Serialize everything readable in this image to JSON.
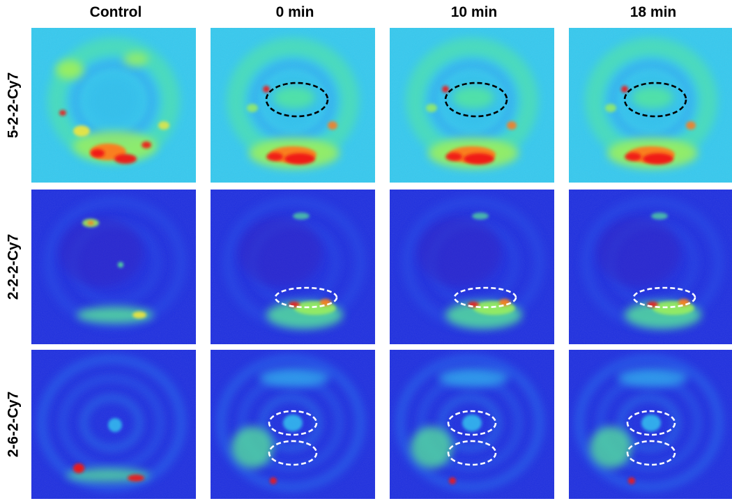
{
  "columns": [
    "Control",
    "0 min",
    "10 min",
    "18 min"
  ],
  "rows": [
    {
      "label": "5-2-2-Cy7",
      "theme": "cyan",
      "roi_color": "#000000"
    },
    {
      "label": "2-2-2-Cy7",
      "theme": "blue",
      "roi_color": "#ffffff"
    },
    {
      "label": "2-6-2-Cy7",
      "theme": "blue",
      "roi_color": "#ffffff"
    }
  ],
  "colormap": [
    "#1e2fe0",
    "#2a7cf2",
    "#35c9ef",
    "#57e89a",
    "#9ef05a",
    "#f2e63a",
    "#ff7a1e",
    "#f01818"
  ]
}
